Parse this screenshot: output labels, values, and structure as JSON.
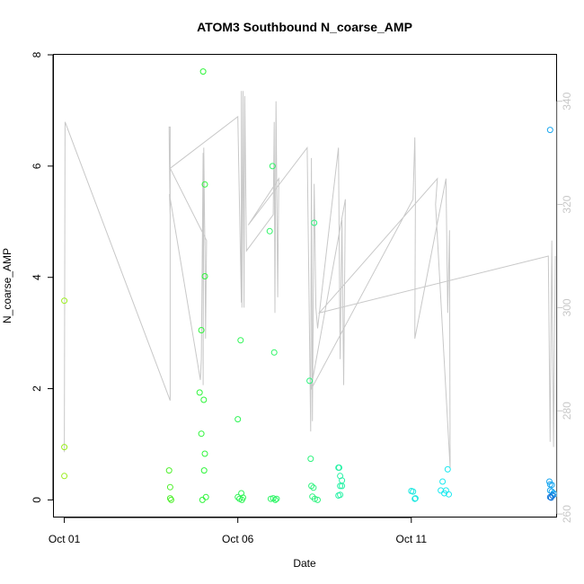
{
  "chart_data": {
    "type": "scatter",
    "title": "ATOM3 Southbound N_coarse_AMP",
    "xlabel": "Date",
    "ylabel": "N_coarse_AMP",
    "x_unit": "days since Oct 01",
    "xlim": [
      -0.3,
      14.2
    ],
    "ylim": [
      -0.3,
      8.0
    ],
    "x_ticks": [
      {
        "value": 0,
        "label": "Oct 01"
      },
      {
        "value": 5,
        "label": "Oct 06"
      },
      {
        "value": 10,
        "label": "Oct 11"
      }
    ],
    "y_ticks": [
      0,
      2,
      4,
      6,
      8
    ],
    "y2_ticks": [
      260,
      280,
      300,
      320,
      340
    ],
    "y2lim": [
      259.5,
      349.0
    ],
    "grid": false,
    "points": [
      {
        "x": 0.0,
        "y": 3.58,
        "color": "#9aee1c"
      },
      {
        "x": 0.0,
        "y": 0.95,
        "color": "#9aee1c"
      },
      {
        "x": 0.0,
        "y": 0.43,
        "color": "#9aee1c"
      },
      {
        "x": 3.02,
        "y": 0.53,
        "color": "#4ff02d"
      },
      {
        "x": 3.05,
        "y": 0.23,
        "color": "#4ff02d"
      },
      {
        "x": 3.05,
        "y": 0.03,
        "color": "#4ff02d"
      },
      {
        "x": 3.08,
        "y": 0.0,
        "color": "#4ff02d"
      },
      {
        "x": 3.9,
        "y": 1.93,
        "color": "#2ef53a"
      },
      {
        "x": 3.95,
        "y": 3.05,
        "color": "#2ef53a"
      },
      {
        "x": 3.95,
        "y": 1.19,
        "color": "#2ef53a"
      },
      {
        "x": 3.98,
        "y": 0.0,
        "color": "#2ef53a"
      },
      {
        "x": 4.0,
        "y": 7.7,
        "color": "#2ef53a"
      },
      {
        "x": 4.02,
        "y": 1.8,
        "color": "#2ef53a"
      },
      {
        "x": 4.03,
        "y": 0.53,
        "color": "#2ef53a"
      },
      {
        "x": 4.05,
        "y": 5.67,
        "color": "#2ef53a"
      },
      {
        "x": 4.05,
        "y": 4.02,
        "color": "#2ef53a"
      },
      {
        "x": 4.05,
        "y": 0.83,
        "color": "#2ef53a"
      },
      {
        "x": 4.08,
        "y": 0.05,
        "color": "#2ef53a"
      },
      {
        "x": 5.0,
        "y": 1.45,
        "color": "#2ef555"
      },
      {
        "x": 5.08,
        "y": 2.87,
        "color": "#2ef555"
      },
      {
        "x": 5.1,
        "y": 0.12,
        "color": "#2ef555"
      },
      {
        "x": 5.0,
        "y": 0.05,
        "color": "#2ef555"
      },
      {
        "x": 5.05,
        "y": 0.02,
        "color": "#2ef555"
      },
      {
        "x": 5.12,
        "y": 0.0,
        "color": "#2ef555"
      },
      {
        "x": 5.15,
        "y": 0.04,
        "color": "#2ef555"
      },
      {
        "x": 5.92,
        "y": 4.83,
        "color": "#2ef566"
      },
      {
        "x": 5.95,
        "y": 0.02,
        "color": "#2ef566"
      },
      {
        "x": 6.0,
        "y": 6.0,
        "color": "#2ef566"
      },
      {
        "x": 6.02,
        "y": 0.03,
        "color": "#2ef566"
      },
      {
        "x": 6.05,
        "y": 2.65,
        "color": "#2ef566"
      },
      {
        "x": 6.08,
        "y": 0.0,
        "color": "#2ef566"
      },
      {
        "x": 6.12,
        "y": 0.02,
        "color": "#2ef566"
      },
      {
        "x": 7.07,
        "y": 2.14,
        "color": "#2ef37e"
      },
      {
        "x": 7.1,
        "y": 0.74,
        "color": "#2ef37e"
      },
      {
        "x": 7.12,
        "y": 0.25,
        "color": "#2ef37e"
      },
      {
        "x": 7.15,
        "y": 0.06,
        "color": "#2ef37e"
      },
      {
        "x": 7.2,
        "y": 4.98,
        "color": "#2ef37e"
      },
      {
        "x": 7.18,
        "y": 0.22,
        "color": "#2ef37e"
      },
      {
        "x": 7.22,
        "y": 0.02,
        "color": "#2ef37e"
      },
      {
        "x": 7.3,
        "y": 0.0,
        "color": "#2ef37e"
      },
      {
        "x": 7.9,
        "y": 0.58,
        "color": "#28f2a6"
      },
      {
        "x": 7.92,
        "y": 0.58,
        "color": "#28f2a6"
      },
      {
        "x": 7.95,
        "y": 0.43,
        "color": "#28f2a6"
      },
      {
        "x": 8.0,
        "y": 0.35,
        "color": "#28f2a6"
      },
      {
        "x": 7.95,
        "y": 0.25,
        "color": "#28f2a6"
      },
      {
        "x": 8.0,
        "y": 0.25,
        "color": "#28f2a6"
      },
      {
        "x": 7.9,
        "y": 0.08,
        "color": "#28f2a6"
      },
      {
        "x": 7.95,
        "y": 0.09,
        "color": "#28f2a6"
      },
      {
        "x": 10.0,
        "y": 0.16,
        "color": "#1fe8e0"
      },
      {
        "x": 10.05,
        "y": 0.15,
        "color": "#1fe8e0"
      },
      {
        "x": 10.1,
        "y": 0.02,
        "color": "#1fe8e0"
      },
      {
        "x": 10.12,
        "y": 0.03,
        "color": "#1fe8e0"
      },
      {
        "x": 10.85,
        "y": 0.17,
        "color": "#1ce9f0"
      },
      {
        "x": 10.9,
        "y": 0.33,
        "color": "#1ce9f0"
      },
      {
        "x": 10.95,
        "y": 0.12,
        "color": "#1ce9f0"
      },
      {
        "x": 11.0,
        "y": 0.17,
        "color": "#1ce9f0"
      },
      {
        "x": 11.05,
        "y": 0.55,
        "color": "#1ce9f0"
      },
      {
        "x": 11.08,
        "y": 0.1,
        "color": "#1ce9f0"
      },
      {
        "x": 14.0,
        "y": 6.65,
        "color": "#1aa7f0"
      },
      {
        "x": 13.98,
        "y": 0.33,
        "color": "#1aa7f0"
      },
      {
        "x": 14.0,
        "y": 0.28,
        "color": "#1aa7f0"
      },
      {
        "x": 14.05,
        "y": 0.27,
        "color": "#1aa7f0"
      },
      {
        "x": 14.0,
        "y": 0.17,
        "color": "#1aa7f0"
      },
      {
        "x": 14.05,
        "y": 0.15,
        "color": "#1aa7f0"
      },
      {
        "x": 14.1,
        "y": 0.12,
        "color": "#1aa7f0"
      },
      {
        "x": 14.12,
        "y": 0.1,
        "color": "#1aa7f0"
      },
      {
        "x": 14.0,
        "y": 0.05,
        "color": "#0e73d8"
      },
      {
        "x": 14.03,
        "y": 0.04,
        "color": "#0e73d8"
      },
      {
        "x": 14.07,
        "y": 0.08,
        "color": "#0e73d8"
      }
    ],
    "series": [
      {
        "name": "",
        "axis": "right",
        "color": "#c8c8c8",
        "points": [
          [
            0.0,
            272
          ],
          [
            0.02,
            336
          ],
          [
            3.05,
            282
          ],
          [
            3.05,
            335
          ],
          [
            3.02,
            335
          ],
          [
            3.03,
            328
          ],
          [
            3.05,
            318
          ],
          [
            3.03,
            322
          ],
          [
            3.92,
            286
          ],
          [
            3.95,
            290
          ],
          [
            4.0,
            330
          ],
          [
            4.0,
            285
          ],
          [
            4.02,
            331
          ],
          [
            4.05,
            312
          ],
          [
            4.05,
            314
          ],
          [
            4.07,
            294
          ],
          [
            4.1,
            313
          ],
          [
            3.05,
            327
          ],
          [
            5.0,
            337
          ],
          [
            5.1,
            301
          ],
          [
            5.1,
            342
          ],
          [
            5.12,
            300
          ],
          [
            5.15,
            342
          ],
          [
            5.18,
            300
          ],
          [
            5.2,
            341
          ],
          [
            5.25,
            311
          ],
          [
            6.02,
            318
          ],
          [
            6.05,
            336
          ],
          [
            6.07,
            299
          ],
          [
            6.1,
            340
          ],
          [
            6.15,
            302
          ],
          [
            6.18,
            325
          ],
          [
            5.3,
            316
          ],
          [
            7.0,
            331
          ],
          [
            7.1,
            276
          ],
          [
            7.12,
            329
          ],
          [
            7.15,
            278
          ],
          [
            7.2,
            324
          ],
          [
            7.25,
            300
          ],
          [
            7.3,
            296
          ],
          [
            7.9,
            331
          ],
          [
            7.95,
            290
          ],
          [
            8.0,
            317
          ],
          [
            8.05,
            285
          ],
          [
            8.1,
            321
          ],
          [
            7.1,
            284
          ],
          [
            10.05,
            321
          ],
          [
            10.1,
            333
          ],
          [
            10.12,
            322
          ],
          [
            10.1,
            294
          ],
          [
            11.0,
            325
          ],
          [
            11.05,
            299
          ],
          [
            11.1,
            315
          ],
          [
            11.12,
            269
          ],
          [
            10.7,
            320
          ],
          [
            10.75,
            325
          ],
          [
            7.35,
            299
          ],
          [
            13.95,
            310
          ],
          [
            14.0,
            274
          ],
          [
            14.05,
            313
          ],
          [
            14.1,
            273
          ],
          [
            14.15,
            310
          ]
        ]
      }
    ]
  }
}
